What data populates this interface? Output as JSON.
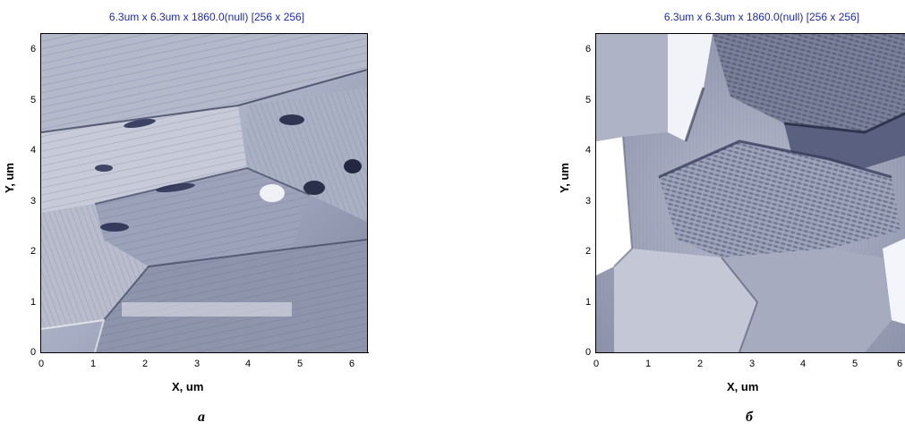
{
  "panels": [
    {
      "scan_title": "6.3um x 6.3um x 1860.0(null) [256 x 256]",
      "x_axis_label": "X, um",
      "y_axis_label": "Y, um",
      "x_ticks": [
        "0",
        "1",
        "2",
        "3",
        "4",
        "5",
        "6"
      ],
      "y_ticks": [
        "0",
        "1",
        "2",
        "3",
        "4",
        "5",
        "6"
      ],
      "caption": "а",
      "image_description": "AFM topography: layered, terraced grains with dark pits",
      "tone_colors": [
        "#eef0f6",
        "#9aa0b8",
        "#3c4262"
      ]
    },
    {
      "scan_title": "6.3um x 6.3um x 1860.0(null) [256 x 256]",
      "x_axis_label": "X, um",
      "y_axis_label": "Y, um",
      "x_ticks": [
        "0",
        "1",
        "2",
        "3",
        "4",
        "5",
        "6"
      ],
      "y_ticks": [
        "0",
        "1",
        "2",
        "3",
        "4",
        "5",
        "6"
      ],
      "caption": "б",
      "image_description": "AFM topography: smooth rounded grains with ridged edges",
      "tone_colors": [
        "#ffffff",
        "#a9aec4",
        "#333852"
      ]
    }
  ]
}
